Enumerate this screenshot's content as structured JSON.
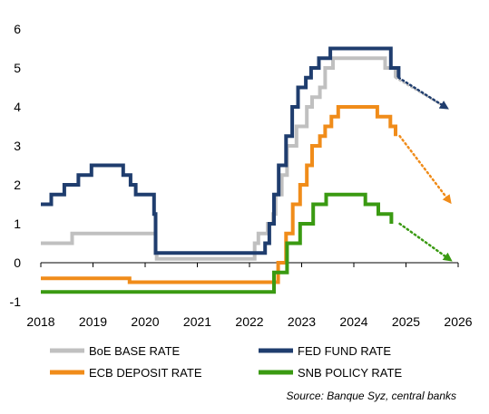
{
  "chart_data": {
    "type": "line",
    "title": "",
    "xlabel": "",
    "ylabel": "",
    "xlim": [
      2018,
      2026
    ],
    "ylim": [
      -1,
      6
    ],
    "x_ticks": [
      2018,
      2019,
      2020,
      2021,
      2022,
      2023,
      2024,
      2025,
      2026
    ],
    "x_tick_labels": [
      "2018",
      "2019",
      "2020",
      "2021",
      "2022",
      "2023",
      "2024",
      "2025",
      "2026"
    ],
    "y_ticks": [
      -1,
      0,
      1,
      2,
      3,
      4,
      5,
      6
    ],
    "y_tick_labels": [
      "-1",
      "0",
      "1",
      "2",
      "3",
      "4",
      "5",
      "6"
    ],
    "grid": false,
    "zero_line": true,
    "legend_position": "bottom",
    "series": [
      {
        "name": "BoE BASE RATE",
        "color": "#c0c0c0",
        "step": true,
        "points": [
          [
            2018.0,
            0.5
          ],
          [
            2018.6,
            0.75
          ],
          [
            2019.0,
            0.75
          ],
          [
            2020.0,
            0.75
          ],
          [
            2020.2,
            0.25
          ],
          [
            2020.22,
            0.1
          ],
          [
            2021.0,
            0.1
          ],
          [
            2021.95,
            0.1
          ],
          [
            2022.1,
            0.5
          ],
          [
            2022.17,
            0.75
          ],
          [
            2022.35,
            1.0
          ],
          [
            2022.45,
            1.25
          ],
          [
            2022.5,
            1.75
          ],
          [
            2022.62,
            2.25
          ],
          [
            2022.72,
            3.0
          ],
          [
            2022.9,
            3.5
          ],
          [
            2023.1,
            4.0
          ],
          [
            2023.2,
            4.25
          ],
          [
            2023.35,
            4.5
          ],
          [
            2023.45,
            5.0
          ],
          [
            2023.6,
            5.25
          ],
          [
            2024.0,
            5.25
          ],
          [
            2024.6,
            5.0
          ],
          [
            2024.8,
            4.75
          ]
        ],
        "forecast": [
          [
            2024.8,
            4.75
          ],
          [
            2025.75,
            4.0
          ]
        ]
      },
      {
        "name": "FED FUND RATE",
        "color": "#1f3d6e",
        "step": true,
        "points": [
          [
            2018.0,
            1.5
          ],
          [
            2018.2,
            1.75
          ],
          [
            2018.45,
            2.0
          ],
          [
            2018.72,
            2.25
          ],
          [
            2018.97,
            2.5
          ],
          [
            2019.5,
            2.5
          ],
          [
            2019.58,
            2.25
          ],
          [
            2019.72,
            2.0
          ],
          [
            2019.82,
            1.75
          ],
          [
            2020.0,
            1.75
          ],
          [
            2020.15,
            1.75
          ],
          [
            2020.17,
            1.25
          ],
          [
            2020.2,
            0.25
          ],
          [
            2021.0,
            0.25
          ],
          [
            2022.17,
            0.25
          ],
          [
            2022.3,
            0.5
          ],
          [
            2022.38,
            1.0
          ],
          [
            2022.47,
            1.75
          ],
          [
            2022.56,
            2.5
          ],
          [
            2022.7,
            3.25
          ],
          [
            2022.82,
            4.0
          ],
          [
            2022.93,
            4.5
          ],
          [
            2023.08,
            4.75
          ],
          [
            2023.18,
            5.0
          ],
          [
            2023.33,
            5.25
          ],
          [
            2023.55,
            5.5
          ],
          [
            2024.0,
            5.5
          ],
          [
            2024.71,
            5.0
          ],
          [
            2024.86,
            4.75
          ]
        ],
        "forecast": [
          [
            2024.86,
            4.75
          ],
          [
            2025.75,
            4.0
          ]
        ]
      },
      {
        "name": "ECB DEPOSIT RATE",
        "color": "#f08c1a",
        "step": true,
        "points": [
          [
            2018.0,
            -0.4
          ],
          [
            2019.0,
            -0.4
          ],
          [
            2019.7,
            -0.5
          ],
          [
            2020.0,
            -0.5
          ],
          [
            2021.0,
            -0.5
          ],
          [
            2022.0,
            -0.5
          ],
          [
            2022.55,
            0.0
          ],
          [
            2022.7,
            0.75
          ],
          [
            2022.83,
            1.5
          ],
          [
            2022.97,
            2.0
          ],
          [
            2023.1,
            2.5
          ],
          [
            2023.2,
            3.0
          ],
          [
            2023.35,
            3.25
          ],
          [
            2023.45,
            3.5
          ],
          [
            2023.57,
            3.75
          ],
          [
            2023.7,
            4.0
          ],
          [
            2024.0,
            4.0
          ],
          [
            2024.45,
            3.75
          ],
          [
            2024.7,
            3.5
          ],
          [
            2024.8,
            3.25
          ]
        ],
        "forecast": [
          [
            2024.88,
            3.25
          ],
          [
            2025.82,
            1.6
          ]
        ]
      },
      {
        "name": "SNB POLICY RATE",
        "color": "#3a9a12",
        "step": true,
        "points": [
          [
            2018.0,
            -0.75
          ],
          [
            2019.0,
            -0.75
          ],
          [
            2020.0,
            -0.75
          ],
          [
            2021.0,
            -0.75
          ],
          [
            2022.0,
            -0.75
          ],
          [
            2022.47,
            -0.25
          ],
          [
            2022.72,
            0.5
          ],
          [
            2022.97,
            1.0
          ],
          [
            2023.22,
            1.5
          ],
          [
            2023.47,
            1.75
          ],
          [
            2024.0,
            1.75
          ],
          [
            2024.22,
            1.5
          ],
          [
            2024.47,
            1.25
          ],
          [
            2024.72,
            1.0
          ]
        ],
        "forecast": [
          [
            2024.88,
            1.0
          ],
          [
            2025.82,
            0.1
          ]
        ]
      }
    ],
    "source": "Source: Banque Syz, central banks"
  }
}
